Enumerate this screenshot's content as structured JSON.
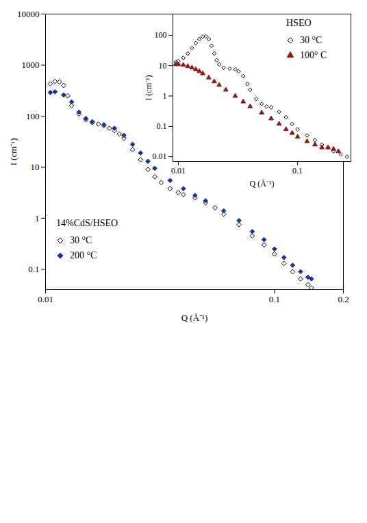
{
  "chart_data": [
    {
      "type": "scatter",
      "log": true,
      "x_label": "Q (Å⁻¹)",
      "y_label": "I (cm⁻¹)",
      "legend_title": "14%CdS/HSEO",
      "legend": "lower left",
      "xlim": [
        0.01,
        0.2
      ],
      "xticks": [
        0.01,
        0.1,
        0.2
      ],
      "ylim": [
        0.04,
        10000
      ],
      "yticks": [
        0.1,
        1,
        10,
        100,
        1000,
        10000
      ],
      "series": [
        {
          "name": "30 °C",
          "color": "#000000",
          "marker": "diamond-open",
          "x": [
            0.0105,
            0.011,
            0.0115,
            0.012,
            0.0125,
            0.013,
            0.014,
            0.015,
            0.016,
            0.017,
            0.018,
            0.019,
            0.02,
            0.021,
            0.022,
            0.024,
            0.026,
            0.028,
            0.03,
            0.032,
            0.035,
            0.038,
            0.04,
            0.045,
            0.05,
            0.055,
            0.06,
            0.07,
            0.08,
            0.09,
            0.1,
            0.11,
            0.12,
            0.13,
            0.14,
            0.145
          ],
          "values": [
            430,
            480,
            470,
            400,
            250,
            160,
            110,
            85,
            75,
            70,
            65,
            58,
            52,
            45,
            37,
            22,
            14,
            9,
            6.5,
            5,
            3.8,
            3.2,
            2.9,
            2.5,
            2.0,
            1.6,
            1.2,
            0.75,
            0.45,
            0.3,
            0.2,
            0.13,
            0.09,
            0.065,
            0.05,
            0.043
          ]
        },
        {
          "name": "200 °C",
          "color": "#1c3296",
          "marker": "diamond",
          "x": [
            0.0105,
            0.011,
            0.012,
            0.013,
            0.014,
            0.015,
            0.016,
            0.018,
            0.02,
            0.022,
            0.024,
            0.026,
            0.028,
            0.03,
            0.035,
            0.04,
            0.045,
            0.05,
            0.06,
            0.07,
            0.08,
            0.09,
            0.1,
            0.11,
            0.12,
            0.13,
            0.14,
            0.145
          ],
          "values": [
            290,
            300,
            260,
            190,
            120,
            90,
            78,
            68,
            58,
            42,
            28,
            19,
            13,
            9.5,
            5.5,
            3.8,
            2.8,
            2.2,
            1.4,
            0.9,
            0.55,
            0.38,
            0.25,
            0.17,
            0.12,
            0.09,
            0.07,
            0.065
          ]
        }
      ]
    },
    {
      "type": "scatter",
      "log": true,
      "x_label": "Q (Å⁻¹)",
      "y_label": "I (cm⁻¹)",
      "legend_title": "HSEO",
      "legend": "upper right",
      "xlim": [
        0.009,
        0.28
      ],
      "xticks": [
        0.01,
        0.1
      ],
      "ylim": [
        0.007,
        500
      ],
      "yticks": [
        0.01,
        0.1,
        1,
        10,
        100
      ],
      "series": [
        {
          "name": "30 °C",
          "color": "#000000",
          "marker": "diamond-open",
          "x": [
            0.0095,
            0.01,
            0.011,
            0.012,
            0.013,
            0.014,
            0.015,
            0.016,
            0.017,
            0.018,
            0.019,
            0.02,
            0.021,
            0.022,
            0.024,
            0.027,
            0.03,
            0.032,
            0.035,
            0.038,
            0.04,
            0.045,
            0.05,
            0.055,
            0.06,
            0.07,
            0.08,
            0.09,
            0.1,
            0.12,
            0.14,
            0.16,
            0.18,
            0.2,
            0.23,
            0.26
          ],
          "values": [
            13,
            14,
            18,
            25,
            38,
            55,
            75,
            90,
            92,
            75,
            45,
            25,
            15,
            11,
            8.5,
            8,
            7.5,
            6.5,
            4.5,
            2.5,
            1.6,
            0.8,
            0.55,
            0.45,
            0.42,
            0.3,
            0.2,
            0.12,
            0.08,
            0.05,
            0.035,
            0.025,
            0.02,
            0.015,
            0.012,
            0.01
          ]
        },
        {
          "name": "100° C",
          "color": "#8b1a1a",
          "marker": "triangle",
          "x": [
            0.0095,
            0.01,
            0.011,
            0.012,
            0.013,
            0.014,
            0.015,
            0.016,
            0.018,
            0.02,
            0.022,
            0.025,
            0.03,
            0.035,
            0.04,
            0.05,
            0.06,
            0.07,
            0.08,
            0.09,
            0.1,
            0.12,
            0.14,
            0.16,
            0.18,
            0.2,
            0.22
          ],
          "values": [
            11,
            11,
            10.5,
            9.5,
            8.5,
            7.5,
            6.5,
            5.5,
            4,
            3,
            2.3,
            1.6,
            1.0,
            0.65,
            0.45,
            0.28,
            0.18,
            0.12,
            0.08,
            0.06,
            0.045,
            0.032,
            0.025,
            0.02,
            0.02,
            0.018,
            0.015
          ]
        }
      ]
    }
  ]
}
